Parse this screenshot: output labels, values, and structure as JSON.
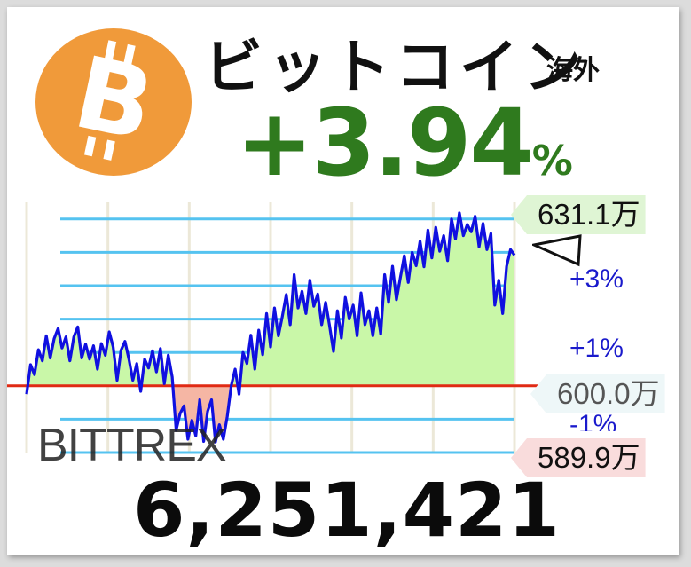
{
  "header": {
    "name": "ビットコイン",
    "region": "海外",
    "change_value": "+3.94",
    "change_unit": "%",
    "logo_icon": "bitcoin-icon"
  },
  "exchange": "BITTREX",
  "price": "6,251,421",
  "labels": {
    "high": "631.1万",
    "base": "600.0万",
    "low": "589.9万",
    "pct_plus3": "+3%",
    "pct_plus1": "+1%",
    "pct_minus1": "-1%"
  },
  "colors": {
    "up": "#2f7a1e",
    "line": "#1010e0",
    "area_up": "#c9f7a8",
    "area_down": "#f5b6a4",
    "baseline": "#e02a14",
    "grid": "#55c3f0",
    "logo": "#f09a3a"
  },
  "chart_data": {
    "type": "line",
    "baseline": 600.0,
    "high": 631.1,
    "low": 589.9,
    "y_unit": "万",
    "ylim": [
      588.0,
      633.0
    ],
    "percent_gridlines": [
      -2,
      -1,
      0,
      1,
      2,
      3,
      4,
      5
    ],
    "series": [
      {
        "values": [
          598.5,
          603.8,
          602.0,
          606.5,
          604.5,
          609.0,
          605.0,
          608.5,
          610.3,
          606.8,
          608.8,
          604.5,
          608.8,
          610.6,
          605.0,
          607.5,
          604.8,
          607.2,
          603.0,
          607.6,
          605.5,
          609.7,
          607.0,
          601.0,
          606.4,
          608.0,
          604.8,
          601.0,
          604.0,
          599.0,
          604.8,
          603.2,
          606.3,
          602.5,
          606.7,
          600.4,
          605.5,
          601.6,
          592.0,
          595.0,
          596.4,
          590.4,
          593.8,
          591.0,
          597.5,
          590.0,
          595.4,
          597.5,
          589.9,
          593.0,
          590.4,
          594.5,
          600.0,
          603.0,
          598.5,
          606.0,
          604.0,
          609.1,
          603.0,
          610.0,
          605.6,
          613.0,
          607.0,
          614.0,
          609.0,
          612.5,
          616.4,
          611.0,
          620.0,
          614.0,
          617.0,
          613.0,
          619.0,
          614.3,
          616.5,
          611.0,
          615.0,
          610.8,
          606.2,
          613.5,
          608.6,
          615.9,
          612.0,
          614.5,
          609.0,
          616.7,
          611.0,
          613.5,
          609.0,
          614.0,
          609.3,
          620.0,
          615.0,
          621.5,
          615.5,
          619.5,
          623.4,
          618.6,
          624.0,
          621.6,
          626.0,
          621.4,
          628.0,
          623.0,
          628.5,
          624.2,
          627.0,
          622.5,
          630.0,
          626.4,
          631.1,
          627.0,
          629.0,
          627.7,
          630.5,
          625.0,
          629.2,
          624.5,
          627.4,
          614.5,
          619.0,
          613.0,
          621.5,
          624.5,
          623.5
        ]
      }
    ]
  }
}
